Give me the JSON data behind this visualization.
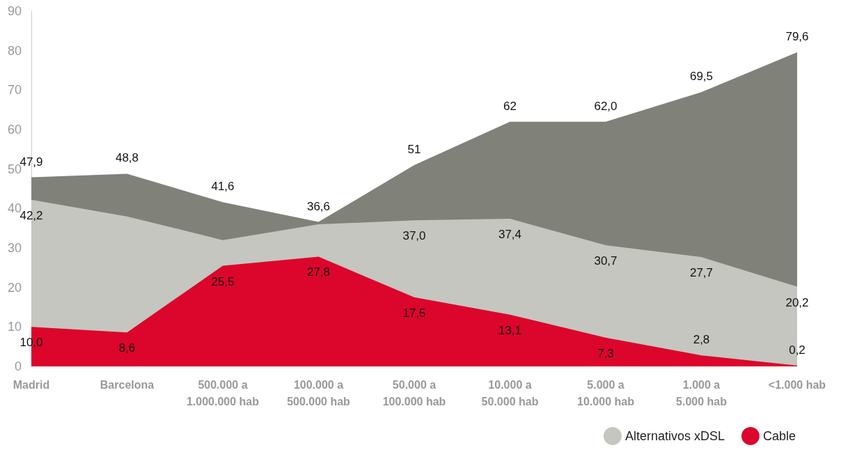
{
  "chart_data": {
    "type": "area",
    "categories": [
      "Madrid",
      "Barcelona",
      "500.000 a 1.000.000 hab",
      "100.000 a 500.000 hab",
      "50.000 a 100.000 hab",
      "10.000 a 50.000 hab",
      "5.000 a 10.000 hab",
      "1.000 a 5.000 hab",
      "<1.000 hab"
    ],
    "series": [
      {
        "color": "#80827a",
        "values": [
          47.9,
          48.8,
          41.6,
          36.6,
          51,
          62,
          62.0,
          69.5,
          79.6
        ],
        "value_labels": [
          "47,9",
          "48,8",
          "41,6",
          "36,6",
          "51",
          "62",
          "62,0",
          "69,5",
          "79,6"
        ]
      },
      {
        "name": "Alternativos xDSL",
        "color": "#c4c6bf",
        "values": [
          42.2,
          38,
          32,
          36,
          37.0,
          37.4,
          30.7,
          27.7,
          20.2
        ],
        "value_labels": [
          "42,2",
          null,
          null,
          null,
          "37,0",
          "37,4",
          "30,7",
          "27,7",
          "20,2"
        ]
      },
      {
        "name": "Cable",
        "color": "#dc052c",
        "values": [
          10.0,
          8.6,
          25.5,
          27.8,
          17.5,
          13.1,
          7.3,
          2.8,
          0.2
        ],
        "value_labels": [
          "10,0",
          "8,6",
          "25,5",
          "27,8",
          "17,5",
          "13,1",
          "7,3",
          "2,8",
          "0,2"
        ]
      }
    ],
    "ylim": [
      0,
      90
    ],
    "yticks": [
      0,
      10,
      20,
      30,
      40,
      50,
      60,
      70,
      80,
      90
    ],
    "grid": false,
    "legend": "bottom right"
  }
}
